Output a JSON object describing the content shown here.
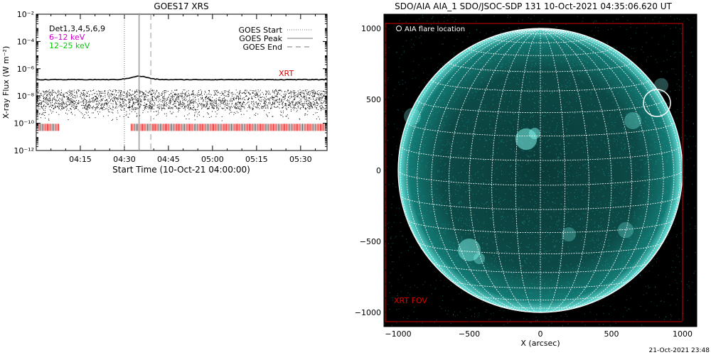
{
  "chart_data": [
    {
      "type": "line",
      "title": "GOES17 XRS",
      "xlabel": "Start Time (10-Oct-21 04:00:00)",
      "ylabel": "X-ray Flux (W m⁻²)",
      "yscale": "log",
      "ylim": [
        1e-12,
        0.01
      ],
      "xlim_minutes": [
        0,
        99
      ],
      "x_ticks": [
        {
          "minute": 15,
          "label": "04:15"
        },
        {
          "minute": 30,
          "label": "04:30"
        },
        {
          "minute": 45,
          "label": "04:45"
        },
        {
          "minute": 60,
          "label": "05:00"
        },
        {
          "minute": 75,
          "label": "05:15"
        },
        {
          "minute": 90,
          "label": "05:30"
        }
      ],
      "y_ticks": [
        {
          "exp": -2,
          "label": "10⁻²"
        },
        {
          "exp": -4,
          "label": "10⁻⁴"
        },
        {
          "exp": -6,
          "label": "10⁻⁶"
        },
        {
          "exp": -8,
          "label": "10⁻⁸"
        },
        {
          "exp": -10,
          "label": "10⁻¹⁰"
        },
        {
          "exp": -12,
          "label": "10⁻¹²"
        }
      ],
      "goes_markers": {
        "start_minute": 30,
        "peak_minute": 35,
        "end_minute": 39
      },
      "legend_left": [
        {
          "label": "Det1,3,4,5,6,9",
          "color": "#000000"
        },
        {
          "label": "6–12 keV",
          "color": "#cc00cc"
        },
        {
          "label": "12–25 keV",
          "color": "#00cc00"
        }
      ],
      "legend_right": [
        {
          "label": "GOES Start",
          "style": "dotted"
        },
        {
          "label": "GOES Peak",
          "style": "solid"
        },
        {
          "label": "GOES End",
          "style": "dashed"
        }
      ],
      "xrt_label": "XRT",
      "series": [
        {
          "name": "GOES long",
          "level_log": -6.8,
          "peak_log": -6.55
        },
        {
          "name": "GOES short",
          "level_log": -8.6,
          "spread_log": 1.0
        }
      ],
      "xrt_band_log": -10.3,
      "xrt_gap_minutes": [
        8,
        32
      ]
    },
    {
      "type": "image",
      "title": "SDO/AIA AIA_1 SDO/JSOC-SDP 131 10-Oct-2021 04:35:06.620 UT",
      "xlabel": "X (arcsec)",
      "xlim": [
        -1100,
        1100
      ],
      "ylim": [
        -1100,
        1100
      ],
      "x_ticks": [
        -1000,
        -500,
        0,
        500,
        1000
      ],
      "y_ticks": [
        -1000,
        -500,
        0,
        500,
        1000
      ],
      "disk_radius_arcsec": 1000,
      "flare_location": {
        "x": 820,
        "y": 475,
        "radius": 95
      },
      "flare_legend": "AIA flare location",
      "xrt_fov_label": "XRT FOV",
      "xrt_fov": {
        "x1": -1090,
        "y1": -1065,
        "x2": 1000,
        "y2": 1035
      }
    }
  ],
  "footer": {
    "timestamp": "21-Oct-2021 23:48"
  }
}
